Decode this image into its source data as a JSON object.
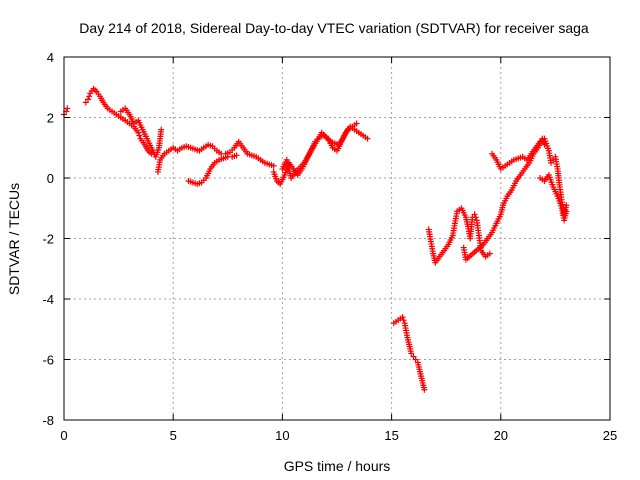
{
  "chart_data": {
    "type": "scatter",
    "title": "Day 214 of 2018, Sidereal Day-to-day VTEC variation (SDTVAR) for receiver saga",
    "xlabel": "GPS time / hours",
    "ylabel": "SDTVAR / TECUs",
    "xlim": [
      0,
      25
    ],
    "ylim": [
      -8,
      4
    ],
    "xticks": [
      0,
      5,
      10,
      15,
      20,
      25
    ],
    "yticks": [
      -8,
      -6,
      -4,
      -2,
      0,
      2,
      4
    ],
    "xtick_labels": [
      "0",
      "5",
      "10",
      "15",
      "20",
      "25"
    ],
    "ytick_labels": [
      "-8",
      "-6",
      "-4",
      "-2",
      "0",
      "2",
      "4"
    ],
    "grid": true,
    "marker": "plus",
    "color": "#ff0000",
    "series": [
      {
        "name": "SDTVAR",
        "segments": [
          [
            [
              0.0,
              2.1
            ],
            [
              0.1,
              2.2
            ],
            [
              0.15,
              2.3
            ]
          ],
          [
            [
              1.0,
              2.5
            ],
            [
              1.1,
              2.6
            ],
            [
              1.2,
              2.8
            ],
            [
              1.35,
              2.95
            ],
            [
              1.5,
              2.85
            ],
            [
              1.65,
              2.7
            ],
            [
              1.8,
              2.5
            ],
            [
              2.0,
              2.3
            ],
            [
              2.2,
              2.2
            ],
            [
              2.4,
              2.1
            ],
            [
              2.6,
              2.0
            ],
            [
              2.8,
              1.9
            ],
            [
              3.0,
              1.8
            ],
            [
              3.2,
              1.7
            ],
            [
              3.4,
              1.5
            ],
            [
              3.5,
              1.3
            ],
            [
              3.7,
              1.1
            ],
            [
              3.85,
              0.9
            ],
            [
              4.0,
              0.8
            ]
          ],
          [
            [
              2.6,
              2.2
            ],
            [
              2.8,
              2.3
            ],
            [
              3.0,
              2.1
            ],
            [
              3.2,
              1.8
            ],
            [
              3.4,
              1.9
            ],
            [
              3.6,
              1.6
            ],
            [
              3.8,
              1.3
            ],
            [
              4.0,
              1.0
            ],
            [
              4.2,
              0.7
            ],
            [
              4.35,
              1.0
            ],
            [
              4.45,
              1.6
            ]
          ],
          [
            [
              4.3,
              0.2
            ],
            [
              4.4,
              0.6
            ],
            [
              4.6,
              0.8
            ],
            [
              4.8,
              0.9
            ],
            [
              5.0,
              1.0
            ],
            [
              5.2,
              0.9
            ],
            [
              5.4,
              1.0
            ],
            [
              5.6,
              1.05
            ],
            [
              5.8,
              1.0
            ],
            [
              6.0,
              0.95
            ],
            [
              6.2,
              0.9
            ],
            [
              6.4,
              1.0
            ],
            [
              6.6,
              1.1
            ],
            [
              6.8,
              1.05
            ],
            [
              7.0,
              0.9
            ],
            [
              7.2,
              0.8
            ],
            [
              7.4,
              0.8
            ],
            [
              7.6,
              0.85
            ],
            [
              7.8,
              1.0
            ],
            [
              8.0,
              1.2
            ],
            [
              8.2,
              1.0
            ],
            [
              8.4,
              0.8
            ],
            [
              8.6,
              0.75
            ],
            [
              8.8,
              0.7
            ],
            [
              9.0,
              0.6
            ],
            [
              9.2,
              0.5
            ],
            [
              9.4,
              0.45
            ],
            [
              9.6,
              0.4
            ]
          ],
          [
            [
              5.7,
              -0.1
            ],
            [
              5.9,
              -0.15
            ],
            [
              6.1,
              -0.2
            ],
            [
              6.3,
              -0.15
            ],
            [
              6.5,
              0.0
            ],
            [
              6.7,
              0.3
            ],
            [
              6.9,
              0.5
            ],
            [
              7.1,
              0.6
            ],
            [
              7.3,
              0.65
            ],
            [
              7.5,
              0.7
            ],
            [
              7.7,
              0.7
            ],
            [
              7.9,
              0.75
            ]
          ],
          [
            [
              9.6,
              0.2
            ],
            [
              9.75,
              -0.1
            ],
            [
              9.9,
              -0.2
            ],
            [
              10.1,
              0.1
            ],
            [
              10.3,
              0.5
            ],
            [
              10.5,
              0.3
            ],
            [
              10.7,
              0.1
            ],
            [
              10.9,
              0.3
            ],
            [
              11.1,
              0.6
            ],
            [
              11.3,
              0.9
            ],
            [
              11.5,
              1.2
            ],
            [
              11.7,
              1.35
            ],
            [
              11.9,
              1.4
            ],
            [
              12.1,
              1.3
            ],
            [
              12.3,
              1.0
            ],
            [
              12.5,
              0.9
            ],
            [
              12.7,
              1.2
            ],
            [
              12.9,
              1.5
            ],
            [
              13.1,
              1.7
            ],
            [
              13.3,
              1.6
            ],
            [
              13.5,
              1.5
            ],
            [
              13.7,
              1.4
            ],
            [
              13.9,
              1.3
            ]
          ],
          [
            [
              10.0,
              0.3
            ],
            [
              10.2,
              0.6
            ],
            [
              10.4,
              0.0
            ],
            [
              10.6,
              0.2
            ],
            [
              11.0,
              0.5
            ],
            [
              11.4,
              1.0
            ],
            [
              11.8,
              1.5
            ],
            [
              12.2,
              1.2
            ],
            [
              12.6,
              1.1
            ],
            [
              13.0,
              1.6
            ],
            [
              13.4,
              1.8
            ]
          ],
          [
            [
              15.1,
              -4.8
            ],
            [
              15.3,
              -4.7
            ],
            [
              15.5,
              -4.6
            ],
            [
              15.6,
              -4.8
            ],
            [
              15.7,
              -5.2
            ],
            [
              15.8,
              -5.5
            ],
            [
              15.9,
              -5.8
            ],
            [
              16.0,
              -5.9
            ],
            [
              16.1,
              -6.0
            ],
            [
              16.2,
              -6.1
            ],
            [
              16.3,
              -6.4
            ],
            [
              16.4,
              -6.7
            ],
            [
              16.5,
              -7.0
            ]
          ],
          [
            [
              16.7,
              -1.7
            ],
            [
              16.8,
              -2.1
            ],
            [
              16.9,
              -2.5
            ],
            [
              17.0,
              -2.8
            ],
            [
              17.2,
              -2.6
            ],
            [
              17.4,
              -2.4
            ],
            [
              17.6,
              -2.2
            ],
            [
              17.8,
              -1.9
            ],
            [
              17.9,
              -1.5
            ],
            [
              18.0,
              -1.1
            ],
            [
              18.2,
              -1.0
            ],
            [
              18.4,
              -1.3
            ],
            [
              18.5,
              -1.6
            ],
            [
              18.6,
              -2.0
            ],
            [
              18.7,
              -1.3
            ],
            [
              18.8,
              -1.2
            ],
            [
              18.9,
              -1.4
            ],
            [
              19.0,
              -1.9
            ],
            [
              19.1,
              -2.4
            ],
            [
              19.3,
              -2.6
            ],
            [
              19.5,
              -2.5
            ]
          ],
          [
            [
              18.3,
              -2.3
            ],
            [
              18.4,
              -2.7
            ],
            [
              19.2,
              -2.2
            ],
            [
              19.4,
              -2.0
            ],
            [
              19.6,
              -1.8
            ],
            [
              19.8,
              -1.5
            ],
            [
              20.0,
              -1.2
            ],
            [
              20.1,
              -0.9
            ],
            [
              20.3,
              -0.6
            ],
            [
              20.5,
              -0.4
            ],
            [
              20.7,
              -0.1
            ],
            [
              20.9,
              0.1
            ],
            [
              21.1,
              0.3
            ],
            [
              21.3,
              0.5
            ],
            [
              21.5,
              0.8
            ],
            [
              21.7,
              1.0
            ],
            [
              21.9,
              1.3
            ],
            [
              22.0,
              1.1
            ]
          ],
          [
            [
              19.6,
              0.8
            ],
            [
              19.8,
              0.6
            ],
            [
              20.0,
              0.3
            ],
            [
              20.2,
              0.4
            ],
            [
              20.4,
              0.5
            ],
            [
              20.6,
              0.6
            ],
            [
              20.8,
              0.65
            ],
            [
              21.0,
              0.7
            ],
            [
              21.2,
              0.6
            ],
            [
              21.4,
              0.8
            ],
            [
              21.6,
              1.0
            ],
            [
              21.8,
              1.2
            ],
            [
              22.0,
              1.3
            ],
            [
              22.2,
              0.9
            ],
            [
              22.3,
              0.5
            ],
            [
              22.4,
              0.6
            ],
            [
              22.5,
              0.7
            ],
            [
              22.6,
              0.3
            ],
            [
              22.7,
              -0.3
            ],
            [
              22.8,
              -0.8
            ],
            [
              22.9,
              -1.2
            ],
            [
              23.0,
              -0.9
            ]
          ],
          [
            [
              21.8,
              0.0
            ],
            [
              22.0,
              -0.1
            ],
            [
              22.2,
              0.1
            ],
            [
              22.4,
              -0.3
            ],
            [
              22.6,
              -0.6
            ],
            [
              22.8,
              -1.0
            ],
            [
              22.9,
              -1.4
            ],
            [
              23.0,
              -1.1
            ]
          ]
        ]
      }
    ]
  }
}
